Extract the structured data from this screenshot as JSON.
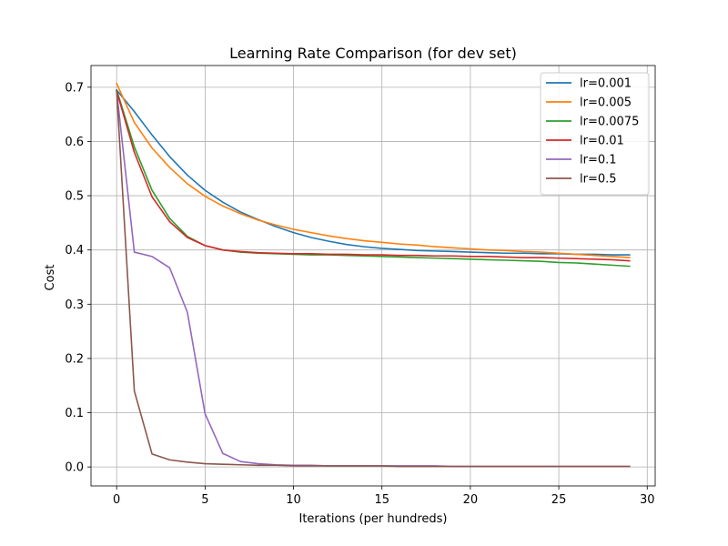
{
  "chart_data": {
    "type": "line",
    "title": "Learning Rate Comparison (for dev set)",
    "xlabel": "Iterations (per hundreds)",
    "ylabel": "Cost",
    "xlim": [
      -1.45,
      30.45
    ],
    "ylim": [
      -0.035,
      0.74
    ],
    "xticks": [
      0,
      5,
      10,
      15,
      20,
      25,
      30
    ],
    "yticks": [
      0.0,
      0.1,
      0.2,
      0.3,
      0.4,
      0.5,
      0.6,
      0.7
    ],
    "ytick_labels": [
      "0.0",
      "0.1",
      "0.2",
      "0.3",
      "0.4",
      "0.5",
      "0.6",
      "0.7"
    ],
    "grid": true,
    "legend_position": "top-right",
    "x": [
      0,
      1,
      2,
      3,
      4,
      5,
      6,
      7,
      8,
      9,
      10,
      11,
      12,
      13,
      14,
      15,
      16,
      17,
      18,
      19,
      20,
      21,
      22,
      23,
      24,
      25,
      26,
      27,
      28,
      29
    ],
    "series": [
      {
        "name": "lr=0.001",
        "color": "#1f77b4",
        "values": [
          0.695,
          0.655,
          0.612,
          0.572,
          0.538,
          0.51,
          0.488,
          0.47,
          0.456,
          0.443,
          0.432,
          0.423,
          0.416,
          0.41,
          0.406,
          0.403,
          0.401,
          0.399,
          0.398,
          0.397,
          0.396,
          0.395,
          0.394,
          0.394,
          0.393,
          0.393,
          0.392,
          0.392,
          0.391,
          0.391
        ]
      },
      {
        "name": "lr=0.005",
        "color": "#ff7f0e",
        "values": [
          0.707,
          0.635,
          0.588,
          0.552,
          0.522,
          0.499,
          0.481,
          0.467,
          0.455,
          0.446,
          0.438,
          0.432,
          0.426,
          0.421,
          0.417,
          0.414,
          0.411,
          0.409,
          0.406,
          0.404,
          0.402,
          0.4,
          0.399,
          0.397,
          0.396,
          0.394,
          0.392,
          0.39,
          0.388,
          0.386
        ]
      },
      {
        "name": "lr=0.0075",
        "color": "#2ca02c",
        "values": [
          0.695,
          0.59,
          0.51,
          0.458,
          0.425,
          0.408,
          0.4,
          0.396,
          0.394,
          0.393,
          0.392,
          0.391,
          0.391,
          0.39,
          0.389,
          0.388,
          0.387,
          0.386,
          0.385,
          0.384,
          0.383,
          0.382,
          0.381,
          0.38,
          0.379,
          0.377,
          0.376,
          0.374,
          0.372,
          0.37
        ]
      },
      {
        "name": "lr=0.01",
        "color": "#d62728",
        "values": [
          0.693,
          0.58,
          0.498,
          0.452,
          0.423,
          0.408,
          0.4,
          0.397,
          0.395,
          0.394,
          0.393,
          0.393,
          0.392,
          0.392,
          0.391,
          0.391,
          0.39,
          0.39,
          0.389,
          0.389,
          0.388,
          0.388,
          0.387,
          0.386,
          0.386,
          0.385,
          0.384,
          0.383,
          0.382,
          0.38
        ]
      },
      {
        "name": "lr=0.1",
        "color": "#9467bd",
        "values": [
          0.693,
          0.396,
          0.388,
          0.367,
          0.285,
          0.098,
          0.025,
          0.01,
          0.006,
          0.004,
          0.003,
          0.003,
          0.002,
          0.002,
          0.002,
          0.002,
          0.002,
          0.002,
          0.002,
          0.001,
          0.001,
          0.001,
          0.001,
          0.001,
          0.001,
          0.001,
          0.001,
          0.001,
          0.001,
          0.001
        ]
      },
      {
        "name": "lr=0.5",
        "color": "#8c564b",
        "values": [
          0.693,
          0.14,
          0.024,
          0.013,
          0.009,
          0.006,
          0.005,
          0.004,
          0.003,
          0.003,
          0.002,
          0.002,
          0.002,
          0.002,
          0.002,
          0.002,
          0.001,
          0.001,
          0.001,
          0.001,
          0.001,
          0.001,
          0.001,
          0.001,
          0.001,
          0.001,
          0.001,
          0.001,
          0.001,
          0.001
        ]
      }
    ]
  }
}
